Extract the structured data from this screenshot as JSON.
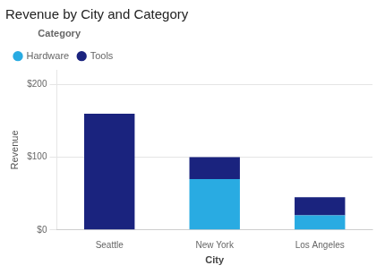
{
  "chart_data": {
    "type": "bar",
    "title": "Revenue by City and Category",
    "xlabel": "City",
    "ylabel": "Revenue",
    "legend_title": "Category",
    "categories": [
      "Seattle",
      "New York",
      "Los Angeles"
    ],
    "series": [
      {
        "name": "Hardware",
        "color": "#29ABE2",
        "values": [
          0,
          70,
          20
        ]
      },
      {
        "name": "Tools",
        "color": "#1A237E",
        "values": [
          160,
          30,
          25
        ]
      }
    ],
    "stacked": true,
    "ylim": [
      0,
      220
    ],
    "yticks": [
      {
        "value": 0,
        "label": "$0"
      },
      {
        "value": 100,
        "label": "$100"
      },
      {
        "value": 200,
        "label": "$200"
      }
    ],
    "grid": true,
    "legend": "top"
  }
}
